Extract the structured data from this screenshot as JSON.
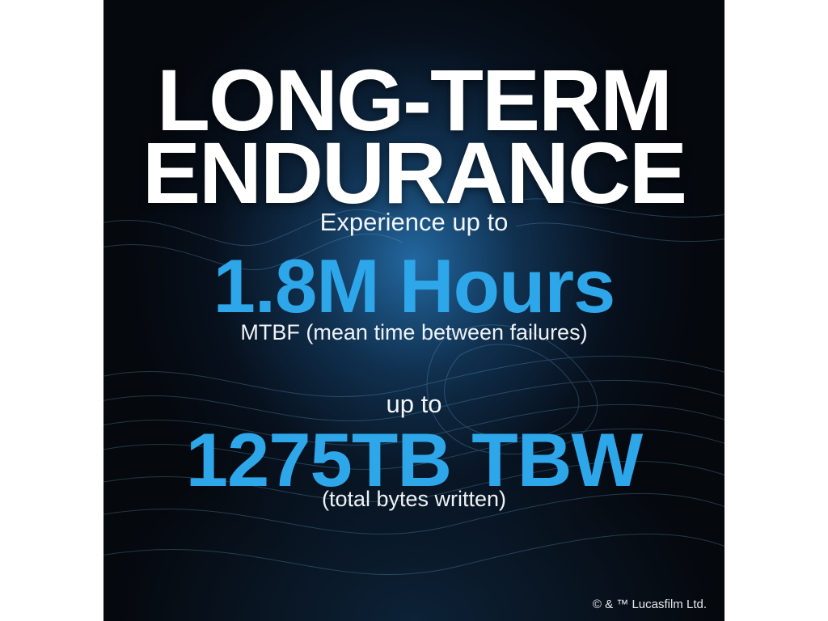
{
  "headline": {
    "line1": "LONG-TERM",
    "line2": "ENDURANCE"
  },
  "mtbf": {
    "intro": "Experience up to",
    "value": "1.8M Hours",
    "caption": "MTBF (mean time between failures)"
  },
  "tbw": {
    "intro": "up to",
    "value": "1275TB TBW",
    "caption": "(total bytes written)"
  },
  "footer": {
    "copyright": "© & ™ Lucasfilm Ltd."
  },
  "colors": {
    "accent": "#2ea6ea",
    "background": "#05080d",
    "glow": "#2878b9"
  }
}
